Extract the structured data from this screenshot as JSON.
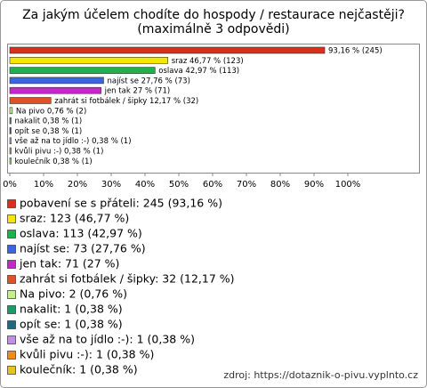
{
  "chart_data": {
    "type": "bar",
    "orientation": "horizontal",
    "title": "Za jakým účelem chodíte do hospody / restaurace nejčastěji?",
    "subtitle": "(maximálně 3 odpovědi)",
    "categories": [
      "pobavení se s přáteli",
      "sraz",
      "oslava",
      "najíst se",
      "jen tak",
      "zahrát si fotbálek / šipky",
      "Na pivo",
      "nakalit",
      "opít se",
      "vše až na to jídlo :-)",
      "kvůli pivu :-)",
      "koulečník"
    ],
    "values": [
      93.16,
      46.77,
      42.97,
      27.76,
      27,
      12.17,
      0.76,
      0.38,
      0.38,
      0.38,
      0.38,
      0.38
    ],
    "value_labels": [
      "93,16 % (245)",
      "sraz 46,77 % (123)",
      "oslava 42,97 % (113)",
      "najíst se 27,76 % (73)",
      "jen tak 27 % (71)",
      "zahrát si fotbálek / šipky 12,17 % (32)",
      "Na pivo 0,76 % (2)",
      "nakalit 0,38 % (1)",
      "opít se 0,38 % (1)",
      "vše až na to jídlo :-) 0,38 % (1)",
      "kvůli pivu :-) 0,38 % (1)",
      "koulečník 0,38 % (1)"
    ],
    "legend_labels": [
      "pobavení se s přáteli: 245 (93,16 %)",
      "sraz: 123 (46,77 %)",
      "oslava: 113 (42,97 %)",
      "najíst se: 73 (27,76 %)",
      "jen tak: 71 (27 %)",
      "zahrát si fotbálek / šipky: 32 (12,17 %)",
      "Na pivo: 2 (0,76 %)",
      "nakalit: 1 (0,38 %)",
      "opít se: 1 (0,38 %)",
      "vše až na to jídlo :-): 1 (0,38 %)",
      "kvůli pivu :-): 1 (0,38 %)",
      "koulečník: 1 (0,38 %)"
    ],
    "colors": [
      "#d8301c",
      "#f5e600",
      "#22b04a",
      "#3a64e0",
      "#c028c8",
      "#e0502a",
      "#c4f08a",
      "#1f9a66",
      "#1f6a82",
      "#c090e6",
      "#f08a20",
      "#e6c420"
    ],
    "xlim": [
      0,
      100
    ],
    "xticks": [
      {
        "value": 0,
        "label": "0%"
      },
      {
        "value": 10,
        "label": "10%"
      },
      {
        "value": 20,
        "label": "20%"
      },
      {
        "value": 30,
        "label": "30%"
      },
      {
        "value": 40,
        "label": "40%"
      },
      {
        "value": 50,
        "label": "50%"
      },
      {
        "value": 60,
        "label": "60%"
      },
      {
        "value": 70,
        "label": "70%"
      },
      {
        "value": 80,
        "label": "80%"
      },
      {
        "value": 90,
        "label": "90%"
      },
      {
        "value": 100,
        "label": "100%"
      }
    ],
    "source": "zdroj: https://dotaznik-o-pivu.vyplnto.cz"
  }
}
